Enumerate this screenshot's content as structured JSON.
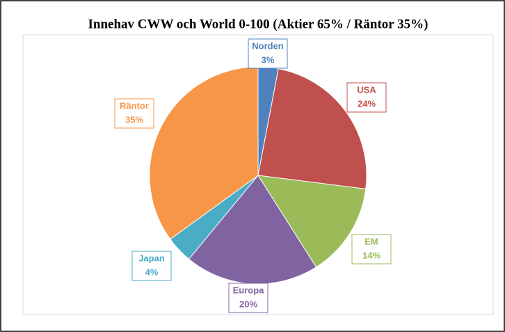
{
  "chart_data": {
    "type": "pie",
    "title": "Innehav CWW och World 0-100 (Aktier 65% / Räntor 35%)",
    "categories": [
      "Norden",
      "USA",
      "EM",
      "Europa",
      "Japan",
      "Räntor"
    ],
    "values": [
      3,
      24,
      14,
      20,
      4,
      35
    ],
    "value_labels": [
      "3%",
      "24%",
      "14%",
      "20%",
      "4%",
      "35%"
    ],
    "colors": [
      "#4f81bd",
      "#c0504d",
      "#9bbb59",
      "#8064a2",
      "#4bacc6",
      "#f79646"
    ]
  }
}
